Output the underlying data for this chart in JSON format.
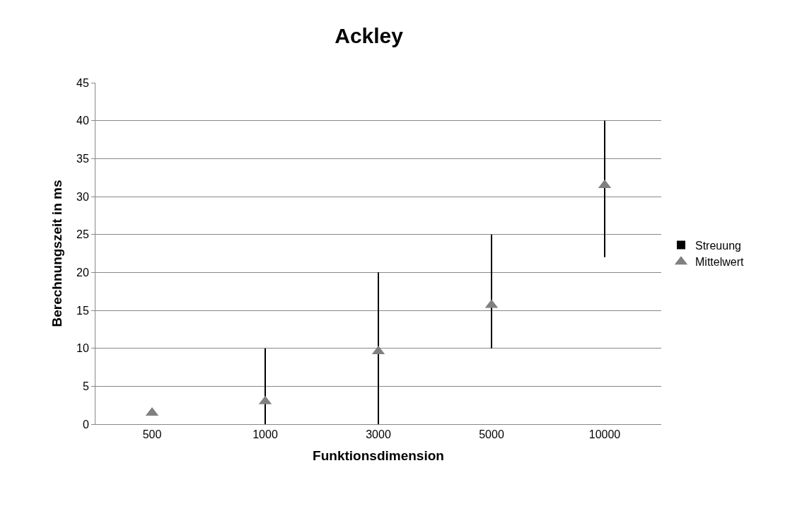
{
  "chart_data": {
    "type": "scatter",
    "title": "Ackley",
    "xlabel": "Funktionsdimension",
    "ylabel": "Berechnungszeit in ms",
    "categories": [
      "500",
      "1000",
      "3000",
      "5000",
      "10000"
    ],
    "series": [
      {
        "name": "Streuung",
        "type": "bar",
        "color": "#000000",
        "base": [
          null,
          0,
          0,
          10,
          22
        ],
        "values": [
          null,
          10,
          20,
          15,
          18
        ]
      },
      {
        "name": "Mittelwert",
        "color": "#808080",
        "marker": "triangle",
        "values": [
          1.5,
          3.0,
          9.6,
          15.7,
          31.5
        ]
      }
    ],
    "ylim": [
      0,
      45
    ],
    "yticks": [
      0,
      5,
      10,
      15,
      20,
      25,
      30,
      35,
      40,
      45
    ],
    "grid": "y",
    "legend": "right"
  }
}
